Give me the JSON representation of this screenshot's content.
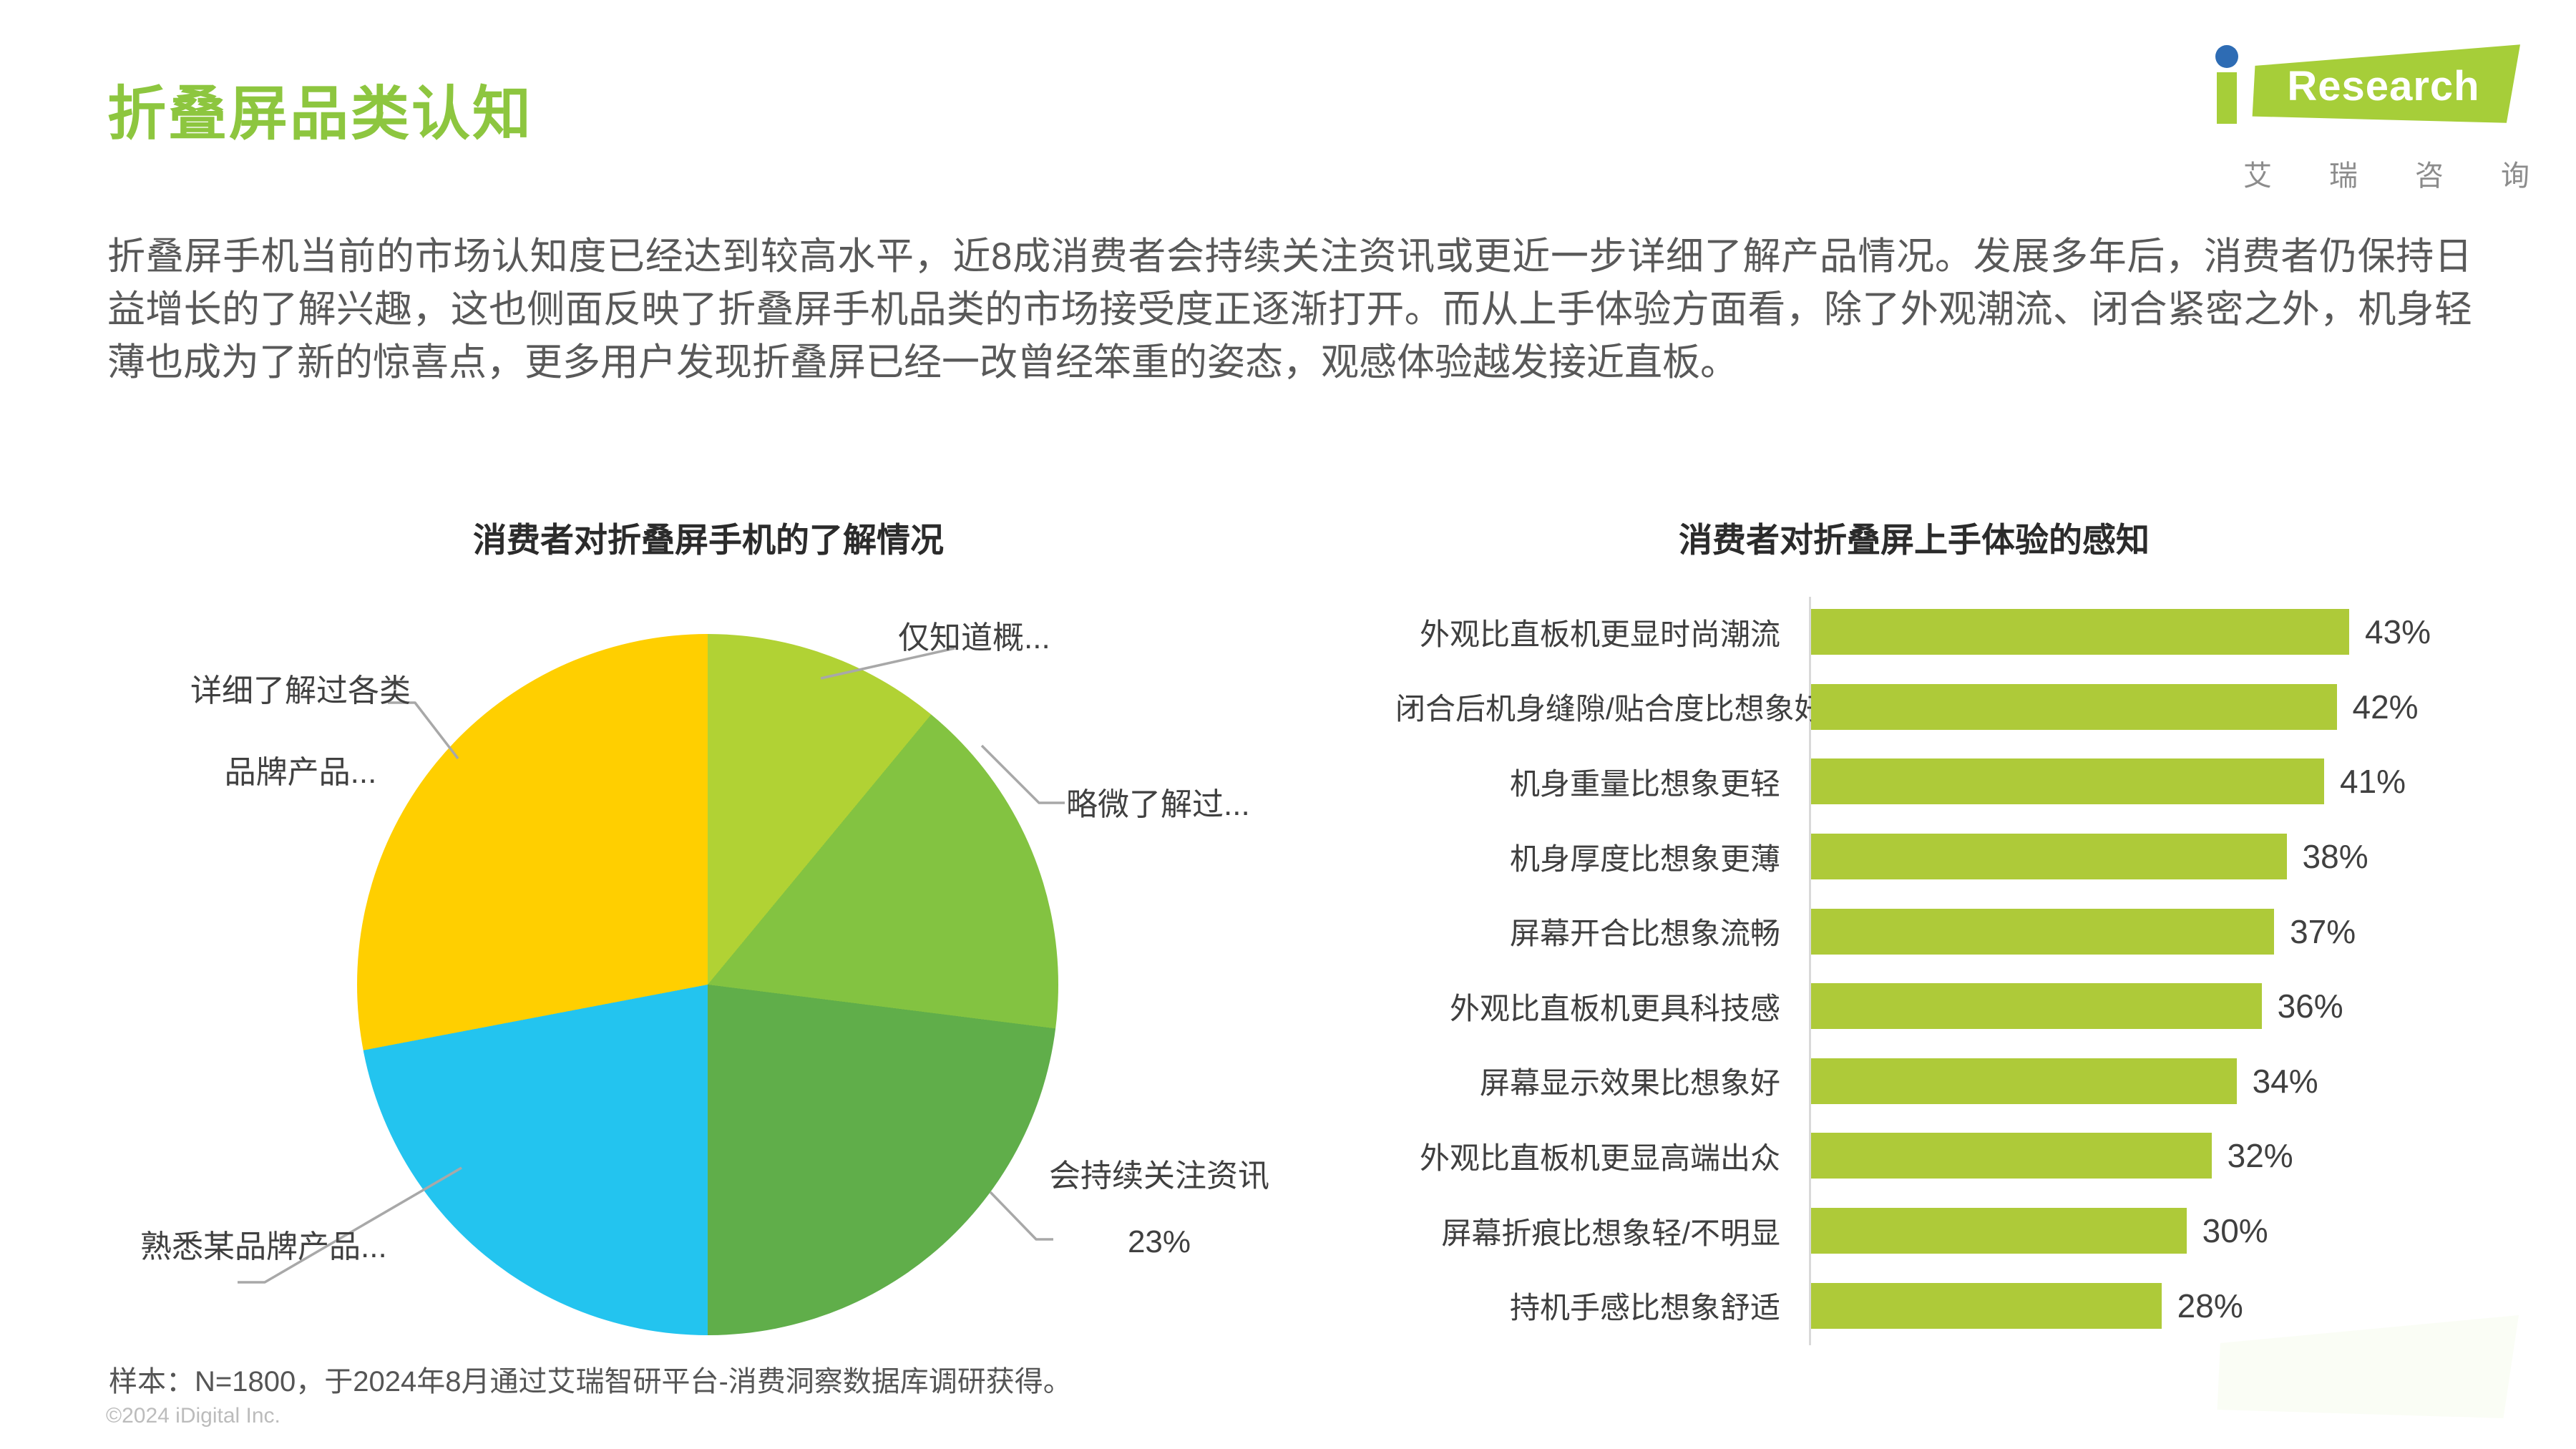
{
  "page": {
    "title": "折叠屏品类认知",
    "paragraph": "折叠屏手机当前的市场认知度已经达到较高水平，近8成消费者会持续关注资讯或更近一步详细了解产品情况。发展多年后，消费者仍保持日益增长的了解兴趣，这也侧面反映了折叠屏手机品类的市场接受度正逐渐打开。而从上手体验方面看，除了外观潮流、闭合紧密之外，机身轻薄也成为了新的惊喜点，更多用户发现折叠屏已经一改曾经笨重的姿态，观感体验越发接近直板。",
    "sample_note": "样本：N=1800，于2024年8月通过艾瑞智研平台-消费洞察数据库调研获得。",
    "copyright": "©2024 iDigital Inc."
  },
  "logo": {
    "brand_i": "i",
    "brand_text": "Research",
    "cn": [
      "艾",
      "瑞",
      "咨",
      "询"
    ],
    "green": "#a6ce39",
    "dot_blue": "#2e6cb4"
  },
  "colors": {
    "title_green": "#8dc63f",
    "body_text": "#595959",
    "chart_title": "#2b2b2b",
    "leader_line": "#a8a8a8",
    "axis_line": "#d9d9d9",
    "bar_green": "#aeca39"
  },
  "chart_data": [
    {
      "type": "pie",
      "title": "消费者对折叠屏手机的了解情况",
      "start_angle_deg": 0,
      "direction": "clockwise",
      "slices": [
        {
          "label": "仅知道概...",
          "value": 11,
          "color": "#b1d234",
          "value_shown": false
        },
        {
          "label": "略微了解过...",
          "value": 16,
          "color": "#83c341",
          "value_shown": false
        },
        {
          "label": "会持续关注资讯",
          "value": 23,
          "color": "#60ae4a",
          "value_shown": true,
          "value_label": "23%"
        },
        {
          "label": "熟悉某品牌产品...",
          "value": 22,
          "color": "#23c4ef",
          "value_shown": false
        },
        {
          "label": "详细了解过各类品牌产品...",
          "value": 28,
          "color": "#ffcf00",
          "value_shown": false,
          "label_line1": "详细了解过各类",
          "label_line2": "品牌产品..."
        }
      ],
      "note": "only the 23% slice value is labeled on the chart; other values estimated from arc angles"
    },
    {
      "type": "bar",
      "orientation": "horizontal",
      "title": "消费者对折叠屏上手体验的感知",
      "categories": [
        "外观比直板机更显时尚潮流",
        "闭合后机身缝隙/贴合度比想象好",
        "机身重量比想象更轻",
        "机身厚度比想象更薄",
        "屏幕开合比想象流畅",
        "外观比直板机更具科技感",
        "屏幕显示效果比想象好",
        "外观比直板机更显高端出众",
        "屏幕折痕比想象轻/不明显",
        "持机手感比想象舒适"
      ],
      "values": [
        43,
        42,
        41,
        38,
        37,
        36,
        34,
        32,
        30,
        28
      ],
      "value_suffix": "%",
      "bar_color": "#aeca39",
      "xlim": [
        0,
        45
      ],
      "grid": false,
      "legend": false
    }
  ]
}
